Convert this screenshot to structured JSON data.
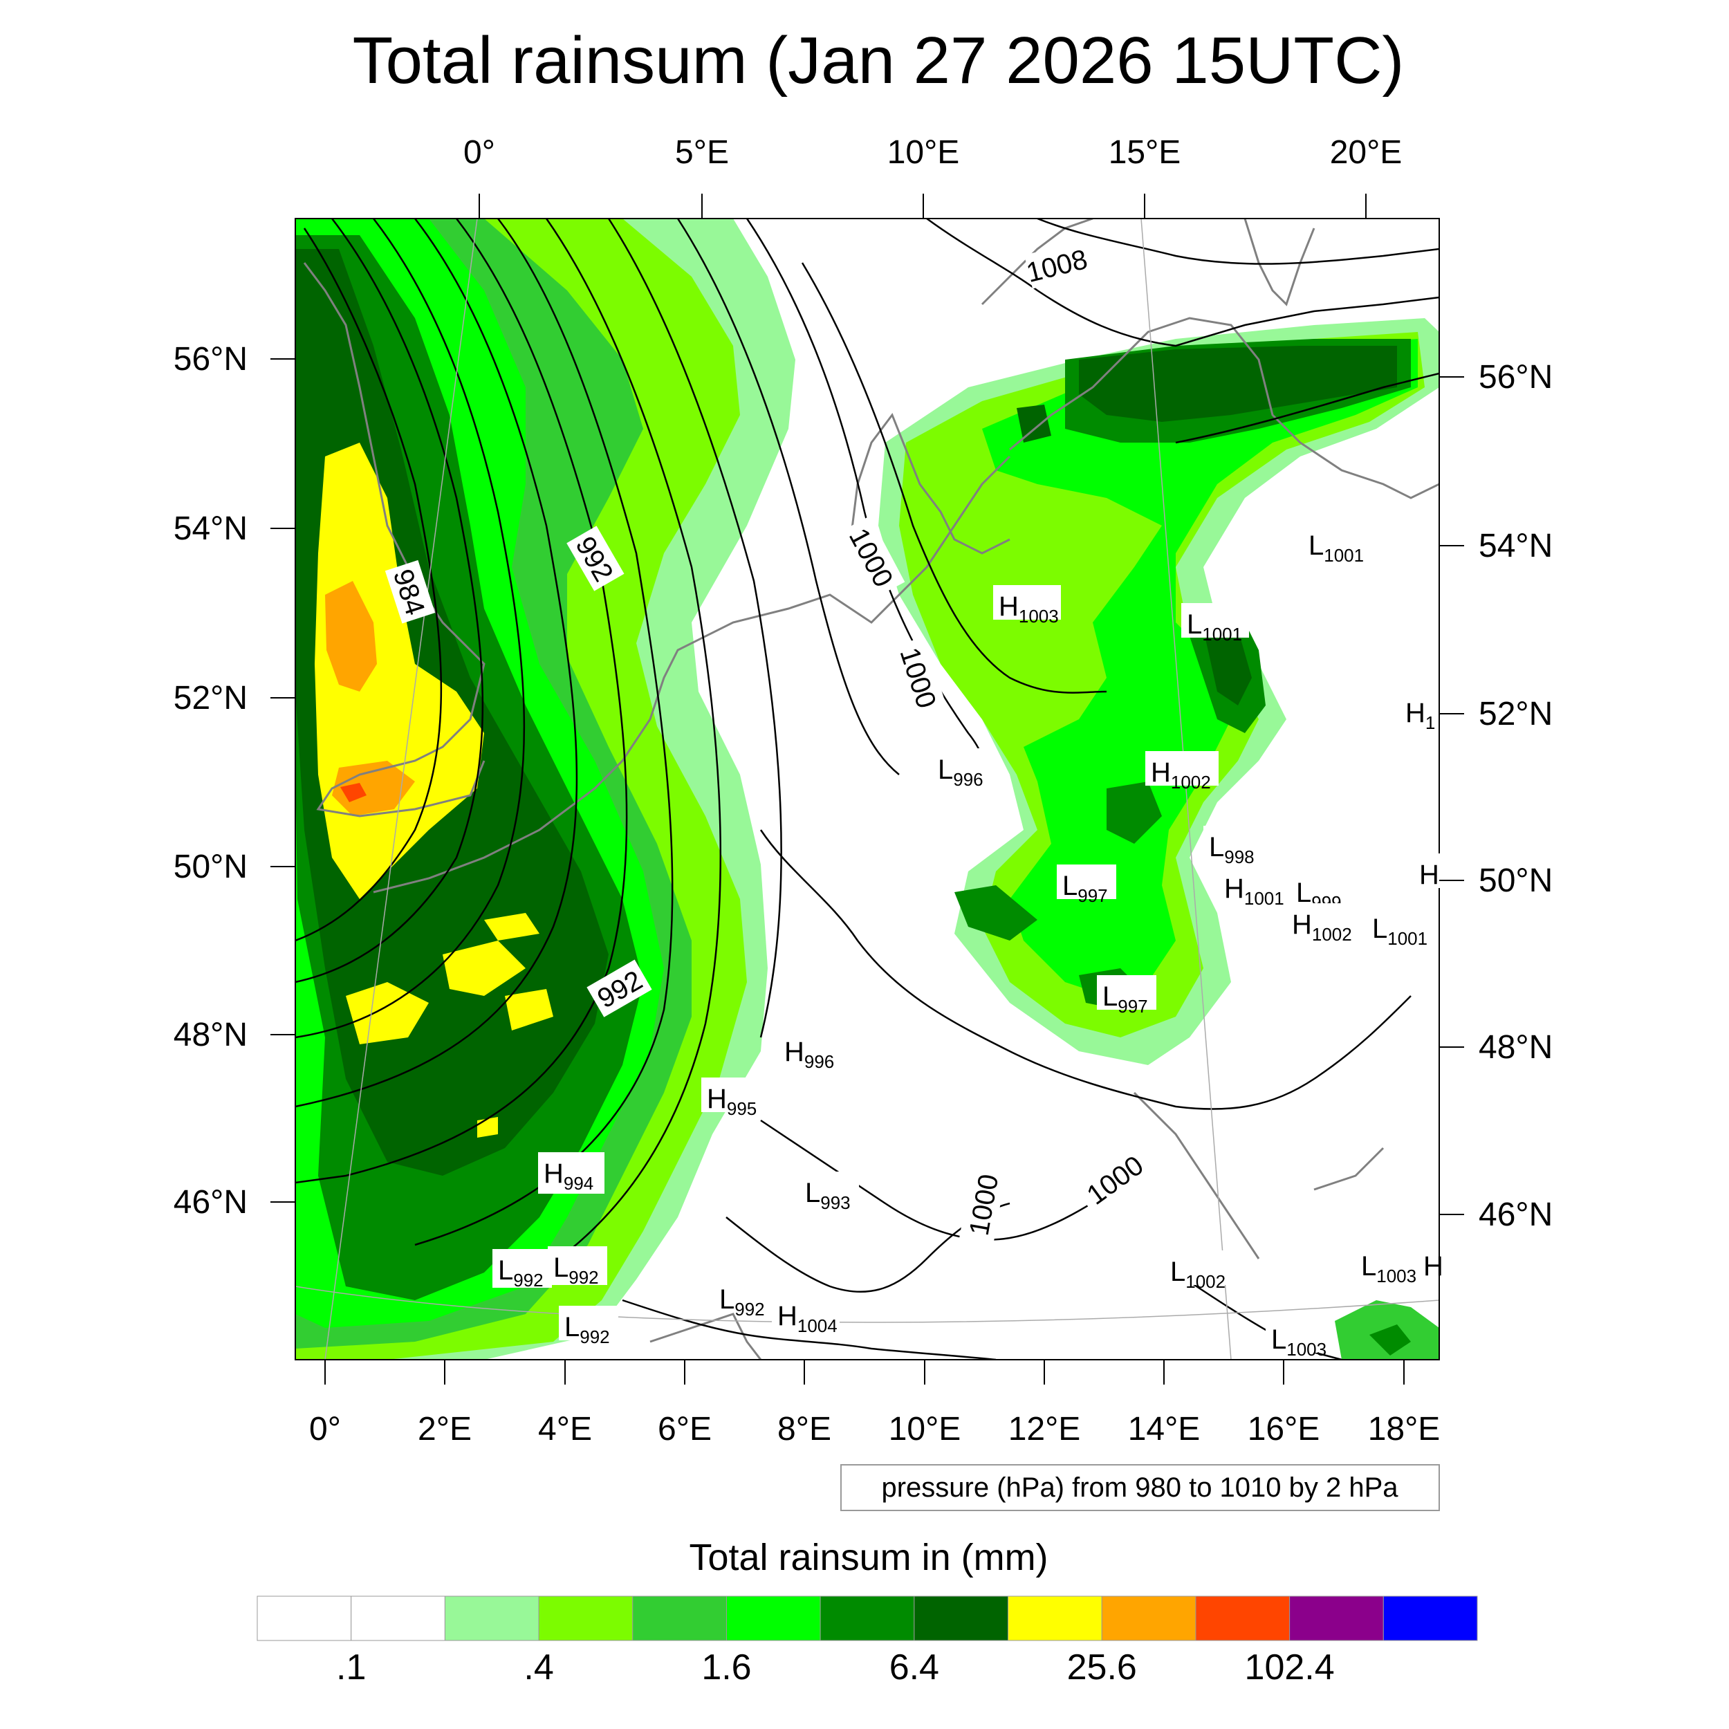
{
  "title": "Total rainsum (Jan 27 2026 15UTC)",
  "map": {
    "top_lon_labels": [
      "0°",
      "5°E",
      "10°E",
      "15°E",
      "20°E"
    ],
    "bottom_lon_labels": [
      "0°",
      "2°E",
      "4°E",
      "6°E",
      "8°E",
      "10°E",
      "12°E",
      "14°E",
      "16°E",
      "18°E"
    ],
    "left_lat_labels": [
      "56°N",
      "54°N",
      "52°N",
      "50°N",
      "48°N",
      "46°N"
    ],
    "right_lat_labels": [
      "56°N",
      "54°N",
      "52°N",
      "50°N",
      "48°N",
      "46°N"
    ],
    "isobar_labels": [
      "1008",
      "992",
      "984",
      "1000",
      "1000",
      "992",
      "1000",
      "1000"
    ],
    "pressure_centers": [
      {
        "t": "L",
        "v": "1001"
      },
      {
        "t": "H",
        "v": "1003"
      },
      {
        "t": "L",
        "v": "1001"
      },
      {
        "t": "H",
        "v": "1"
      },
      {
        "t": "L",
        "v": "996"
      },
      {
        "t": "H",
        "v": "1002"
      },
      {
        "t": "L",
        "v": "998"
      },
      {
        "t": "L",
        "v": "997"
      },
      {
        "t": "H",
        "v": "1001"
      },
      {
        "t": "L",
        "v": "999"
      },
      {
        "t": "H",
        "v": "1002"
      },
      {
        "t": "L",
        "v": "1001"
      },
      {
        "t": "H",
        "v": ""
      },
      {
        "t": "L",
        "v": "997"
      },
      {
        "t": "H",
        "v": "996"
      },
      {
        "t": "H",
        "v": "995"
      },
      {
        "t": "H",
        "v": "994"
      },
      {
        "t": "L",
        "v": "993"
      },
      {
        "t": "L",
        "v": "992"
      },
      {
        "t": "L",
        "v": "992"
      },
      {
        "t": "L",
        "v": "992"
      },
      {
        "t": "H",
        "v": "1004"
      },
      {
        "t": "L",
        "v": "992"
      },
      {
        "t": "L",
        "v": "1002"
      },
      {
        "t": "L",
        "v": "1003"
      },
      {
        "t": "H",
        "v": ""
      },
      {
        "t": "L",
        "v": "1003"
      }
    ],
    "pressure_note": "pressure (hPa) from 980 to 1010 by 2 hPa"
  },
  "colorbar": {
    "title": "Total rainsum in (mm)",
    "colors": [
      "#ffffff",
      "#ffffff",
      "#98f898",
      "#7cfc00",
      "#32cd32",
      "#00ff00",
      "#008b00",
      "#006400",
      "#ffff00",
      "#ffa500",
      "#ff4500",
      "#8b008b",
      "#0000ff"
    ],
    "tick_labels": [
      ".1",
      ".4",
      "1.6",
      "6.4",
      "25.6",
      "102.4"
    ]
  }
}
